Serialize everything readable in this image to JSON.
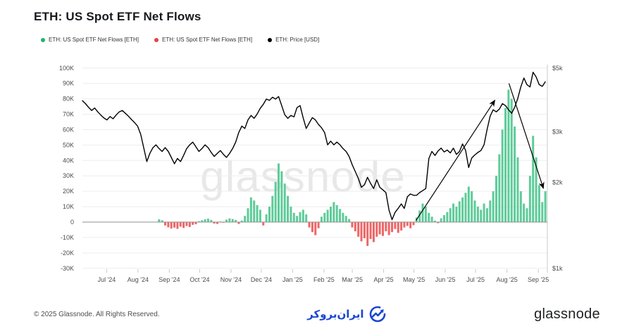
{
  "header": {
    "title": "ETH: US Spot ETF Net Flows"
  },
  "legend": [
    {
      "label": "ETH: US Spot ETF Net Flows [ETH]",
      "color": "#1db470"
    },
    {
      "label": "ETH: US Spot ETF Net Flows [ETH]",
      "color": "#e54242"
    },
    {
      "label": "ETH: Price [USD]",
      "color": "#000000"
    }
  ],
  "watermark": {
    "text": "glassnode"
  },
  "footer": {
    "copyright": "© 2025 Glassnode. All Rights Reserved.",
    "center_logo_text": "ایران‌بروکر",
    "right_logo_text": "glassnode"
  },
  "chart_data": {
    "type": "mixed",
    "title": "ETH: US Spot ETF Net Flows",
    "grid": true,
    "legend_position": "top-left",
    "x_axis": {
      "unit": "time (days from start of plot)",
      "t_max": 460,
      "points_t_step": 3.0331,
      "tick_labels": [
        "Jul '24",
        "Aug '24",
        "Sep '24",
        "Oct '24",
        "Nov '24",
        "Dec '24",
        "Jan '25",
        "Feb '25",
        "Mar '25",
        "Apr '25",
        "May '25",
        "Jun '25",
        "Jul '25",
        "Aug '25",
        "Sep '25"
      ],
      "tick_t": [
        24,
        55,
        86,
        116,
        147,
        177,
        208,
        239,
        267,
        298,
        328,
        359,
        389,
        420,
        451
      ]
    },
    "y_left": {
      "unit": "ETH net flow (thousands)",
      "range": [
        -30,
        100
      ],
      "tick_labels": [
        "100K",
        "90K",
        "80K",
        "70K",
        "60K",
        "50K",
        "40K",
        "30K",
        "20K",
        "10K",
        "0",
        "-10K",
        "-20K",
        "-30K"
      ],
      "tick_values": [
        100,
        90,
        80,
        70,
        60,
        50,
        40,
        30,
        20,
        10,
        0,
        -10,
        -20,
        -30
      ]
    },
    "y_right": {
      "unit": "USD",
      "scale": "log",
      "range": [
        1000,
        5000
      ],
      "tick_labels": [
        "$5k",
        "$3k",
        "$2k",
        "$1k"
      ],
      "tick_values": [
        5000,
        3000,
        2000,
        1000
      ]
    },
    "series": [
      {
        "name": "ETH: US Spot ETF Net Flows [ETH]",
        "type": "bar",
        "axis": "left"
      },
      {
        "name": "ETH: Price [USD]",
        "type": "line",
        "axis": "right"
      }
    ],
    "flows_keth": [
      0,
      0,
      0,
      0,
      0,
      0,
      0,
      0,
      0,
      0,
      0,
      0,
      0,
      0,
      0,
      0,
      0,
      0,
      0,
      0,
      0,
      0,
      0,
      0,
      0,
      1.8,
      1.2,
      -2.2,
      -3.4,
      -4.2,
      -3.6,
      -4.4,
      -3,
      -3.8,
      -2.6,
      -3.2,
      -1.8,
      -1.4,
      0.6,
      1.2,
      1.8,
      2.2,
      1.4,
      -1,
      -1.2,
      0.4,
      -0.4,
      1.6,
      2.4,
      2,
      1.4,
      -1.2,
      1,
      4,
      9,
      16,
      14,
      11,
      8,
      -2.2,
      5,
      10,
      17,
      26,
      38,
      33,
      25,
      17,
      10,
      6,
      4,
      6.5,
      8,
      5,
      -3.5,
      -6.5,
      -8.5,
      -4,
      3.5,
      6,
      8,
      10,
      13,
      11,
      8.5,
      6,
      4,
      2,
      -3.5,
      -6,
      -9.5,
      -12.5,
      -10.5,
      -15.5,
      -11,
      -13,
      -9.5,
      -8,
      -9,
      -6,
      -8.5,
      -6.5,
      -4.5,
      -7,
      -5.5,
      -3.5,
      -2.5,
      -4,
      -2,
      3,
      7.5,
      12,
      10,
      6,
      3.5,
      0.9,
      -0.7,
      2.5,
      4.5,
      6.5,
      9,
      12,
      10,
      13.5,
      16,
      19,
      23,
      20,
      14,
      10,
      8,
      12,
      9,
      14,
      20,
      30,
      44,
      60,
      74,
      86,
      80,
      62,
      42,
      20,
      12,
      9,
      30,
      56,
      42,
      24,
      13,
      20
    ],
    "price_usd": [
      3850,
      3760,
      3650,
      3560,
      3630,
      3520,
      3430,
      3350,
      3300,
      3390,
      3330,
      3430,
      3520,
      3560,
      3480,
      3400,
      3310,
      3230,
      3140,
      2940,
      2640,
      2360,
      2520,
      2640,
      2700,
      2620,
      2560,
      2640,
      2560,
      2440,
      2320,
      2420,
      2360,
      2480,
      2620,
      2700,
      2760,
      2660,
      2560,
      2620,
      2700,
      2640,
      2540,
      2460,
      2520,
      2580,
      2500,
      2440,
      2520,
      2620,
      2760,
      2980,
      3140,
      3080,
      3300,
      3420,
      3340,
      3460,
      3620,
      3740,
      3900,
      3860,
      3960,
      3900,
      3980,
      3700,
      3440,
      3340,
      3420,
      3380,
      3640,
      3700,
      3360,
      3080,
      3220,
      3360,
      3300,
      3180,
      3100,
      2980,
      2700,
      2780,
      2700,
      2760,
      2700,
      2620,
      2560,
      2460,
      2300,
      2180,
      2060,
      1920,
      1960,
      2080,
      1980,
      1900,
      2040,
      1920,
      1880,
      1840,
      1600,
      1480,
      1570,
      1620,
      1680,
      1620,
      1780,
      1820,
      1800,
      1800,
      1840,
      1870,
      1900,
      2420,
      2560,
      2480,
      2570,
      2630,
      2550,
      2590,
      2530,
      2630,
      2500,
      2560,
      2720,
      2580,
      2250,
      2430,
      2490,
      2540,
      2580,
      2700,
      3050,
      3400,
      3580,
      3520,
      3600,
      3760,
      3700,
      3580,
      3480,
      3650,
      3920,
      4300,
      4620,
      4380,
      4300,
      4840,
      4660,
      4380,
      4320,
      4480
    ],
    "colors": {
      "inflow": "#5ecb99",
      "outflow": "#ef6666",
      "price": "#000000",
      "grid": "#ededed",
      "zero_line": "#8f8f8f",
      "axis_line": "#c9c9c9",
      "axis_text": "#4d4d4d"
    },
    "annotations": {
      "arrows": [
        {
          "from_t": 330,
          "from_v": 1,
          "to_t": 408,
          "to_v": 79,
          "direction": "up"
        },
        {
          "from_t": 422,
          "from_v": 90,
          "to_t": 456,
          "to_v": 22,
          "direction": "down"
        }
      ]
    }
  }
}
